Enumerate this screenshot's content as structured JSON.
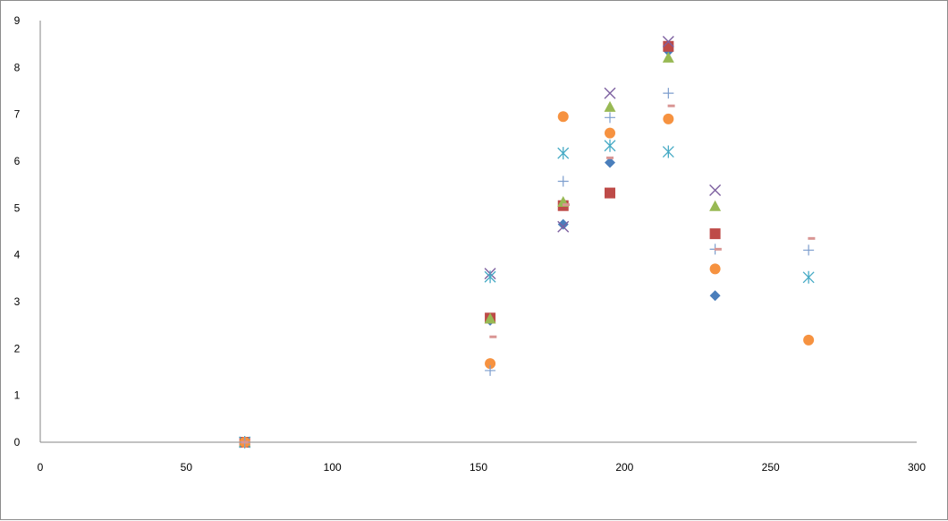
{
  "chart_data": {
    "type": "scatter",
    "title": "",
    "xlabel": "",
    "ylabel": "",
    "xlim": [
      0,
      300
    ],
    "ylim": [
      0,
      9
    ],
    "x_ticks": [
      0,
      50,
      100,
      150,
      200,
      250,
      300
    ],
    "y_ticks": [
      0,
      1,
      2,
      3,
      4,
      5,
      6,
      7,
      8,
      9
    ],
    "grid": false,
    "legend": "none",
    "series": [
      {
        "marker": "diamond",
        "color": "#4a7ebb",
        "x": [
          70,
          154,
          179,
          195,
          215,
          231
        ],
        "y": [
          0,
          2.6,
          4.65,
          5.97,
          8.35,
          3.13
        ]
      },
      {
        "marker": "square",
        "color": "#be4b48",
        "x": [
          70,
          154,
          179,
          195,
          215,
          231
        ],
        "y": [
          0,
          2.65,
          5.05,
          5.32,
          8.45,
          4.45
        ]
      },
      {
        "marker": "triangle",
        "color": "#98b954",
        "x": [
          70,
          154,
          179,
          195,
          215,
          231
        ],
        "y": [
          0,
          2.63,
          5.12,
          7.15,
          8.2,
          5.03
        ]
      },
      {
        "marker": "x",
        "color": "#7d60a0",
        "x": [
          70,
          154,
          179,
          195,
          215,
          231
        ],
        "y": [
          0,
          3.6,
          4.6,
          7.45,
          8.55,
          5.38
        ]
      },
      {
        "marker": "star",
        "color": "#46aac5",
        "x": [
          70,
          154,
          179,
          195,
          215,
          263
        ],
        "y": [
          0,
          3.53,
          6.17,
          6.33,
          6.2,
          3.52
        ]
      },
      {
        "marker": "circle",
        "color": "#f69240",
        "x": [
          70,
          154,
          179,
          195,
          215,
          231,
          263
        ],
        "y": [
          0,
          1.68,
          6.95,
          6.6,
          6.9,
          3.7,
          2.18
        ]
      },
      {
        "marker": "plus",
        "color": "#7c9dcd",
        "x": [
          70,
          154,
          179,
          195,
          215,
          231,
          263
        ],
        "y": [
          0,
          1.53,
          5.57,
          6.93,
          7.45,
          4.12,
          4.1
        ]
      },
      {
        "marker": "dash",
        "color": "#d99694",
        "x": [
          70,
          155,
          180,
          195,
          216,
          232,
          264
        ],
        "y": [
          0,
          2.25,
          5.07,
          6.07,
          7.18,
          4.12,
          4.35
        ]
      }
    ]
  }
}
